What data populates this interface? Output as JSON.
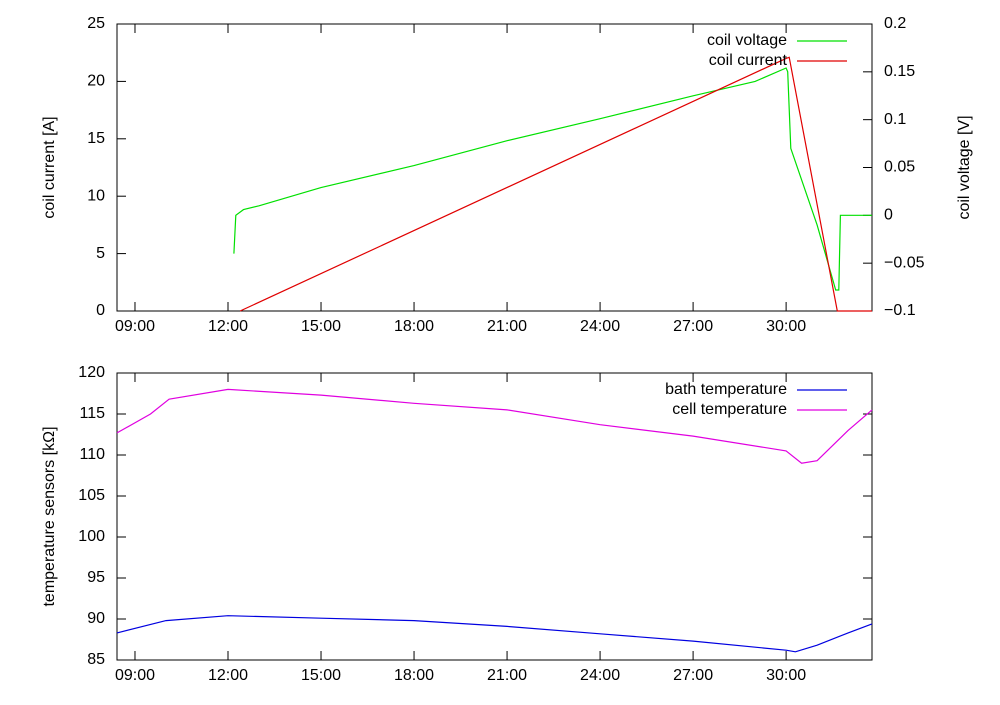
{
  "chart_data": [
    {
      "type": "line",
      "ylabel": "coil current [A]",
      "y2label": "coil voltage [V]",
      "xlim": [
        8.42,
        32.77
      ],
      "xticks": [
        {
          "value": 9,
          "label": "09:00"
        },
        {
          "value": 12,
          "label": "12:00"
        },
        {
          "value": 15,
          "label": "15:00"
        },
        {
          "value": 18,
          "label": "18:00"
        },
        {
          "value": 21,
          "label": "21:00"
        },
        {
          "value": 24,
          "label": "24:00"
        },
        {
          "value": 27,
          "label": "27:00"
        },
        {
          "value": 30,
          "label": "30:00"
        }
      ],
      "ylim": [
        0,
        25
      ],
      "yticks": [
        0,
        5,
        10,
        15,
        20,
        25
      ],
      "y2lim": [
        -0.1,
        0.2
      ],
      "y2ticks": [
        {
          "value": -0.1,
          "label": "−0.1"
        },
        {
          "value": -0.05,
          "label": "−0.05"
        },
        0,
        0.05,
        0.1,
        0.15,
        0.2
      ],
      "grid": false,
      "legend": "top-right",
      "series": [
        {
          "name": "coil voltage",
          "color": "#00e000",
          "axis": "y2",
          "x": [
            12.19,
            12.25,
            12.5,
            13,
            15,
            18,
            21,
            24,
            27,
            29,
            30,
            30.05,
            30.15,
            31.0,
            31.6,
            31.7,
            31.75,
            32.77
          ],
          "values": [
            -0.04,
            0.0,
            0.006,
            0.01,
            0.029,
            0.052,
            0.078,
            0.101,
            0.125,
            0.14,
            0.154,
            0.15,
            0.07,
            -0.01,
            -0.078,
            -0.078,
            0,
            0
          ]
        },
        {
          "name": "coil current",
          "color": "#e00000",
          "x": [
            12.39,
            30.0,
            30.1,
            31.65,
            32.77
          ],
          "values": [
            0,
            22,
            22.1,
            0,
            0
          ]
        }
      ]
    },
    {
      "type": "line",
      "ylabel": "temperature sensors [kΩ]",
      "xlim": [
        8.42,
        32.77
      ],
      "xticks": [
        {
          "value": 9,
          "label": "09:00"
        },
        {
          "value": 12,
          "label": "12:00"
        },
        {
          "value": 15,
          "label": "15:00"
        },
        {
          "value": 18,
          "label": "18:00"
        },
        {
          "value": 21,
          "label": "21:00"
        },
        {
          "value": 24,
          "label": "24:00"
        },
        {
          "value": 27,
          "label": "27:00"
        },
        {
          "value": 30,
          "label": "30:00"
        }
      ],
      "ylim": [
        85,
        120
      ],
      "yticks": [
        85,
        90,
        95,
        100,
        105,
        110,
        115,
        120
      ],
      "grid": false,
      "legend": "top-right",
      "series": [
        {
          "name": "bath temperature",
          "color": "#0000e0",
          "x": [
            8.42,
            10,
            12,
            15,
            18,
            21,
            24,
            27,
            30,
            30.3,
            31,
            32,
            32.77
          ],
          "values": [
            88.3,
            89.8,
            90.4,
            90.1,
            89.8,
            89.1,
            88.2,
            87.3,
            86.2,
            86.0,
            86.8,
            88.3,
            89.4
          ]
        },
        {
          "name": "cell temperature",
          "color": "#e000e0",
          "x": [
            8.42,
            9.5,
            10.1,
            12,
            15,
            18,
            21,
            24,
            27,
            30,
            30.5,
            31,
            32,
            32.77
          ],
          "values": [
            112.7,
            115,
            116.8,
            118,
            117.3,
            116.3,
            115.5,
            113.7,
            112.3,
            110.5,
            109.0,
            109.3,
            113,
            115.5
          ]
        }
      ]
    }
  ]
}
